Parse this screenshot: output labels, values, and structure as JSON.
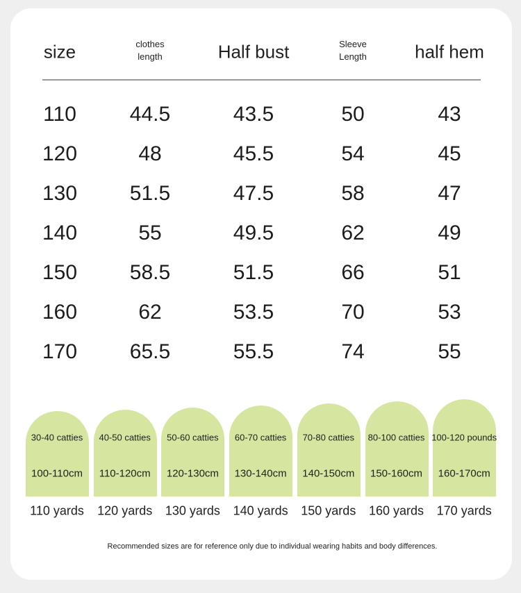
{
  "header": {
    "columns": [
      [
        "size"
      ],
      [
        "clothes",
        "length"
      ],
      [
        "Half bust"
      ],
      [
        "Sleeve",
        "Length"
      ],
      [
        "half hem"
      ]
    ]
  },
  "table": {
    "rows": [
      [
        "110",
        "44.5",
        "43.5",
        "50",
        "43"
      ],
      [
        "120",
        "48",
        "45.5",
        "54",
        "45"
      ],
      [
        "130",
        "51.5",
        "47.5",
        "58",
        "47"
      ],
      [
        "140",
        "55",
        "49.5",
        "62",
        "49"
      ],
      [
        "150",
        "58.5",
        "51.5",
        "66",
        "51"
      ],
      [
        "160",
        "62",
        "53.5",
        "70",
        "53"
      ],
      [
        "170",
        "65.5",
        "55.5",
        "74",
        "55"
      ]
    ]
  },
  "cards": [
    {
      "weight": "30-40 catties",
      "height": "100-110cm",
      "label": "110 yards"
    },
    {
      "weight": "40-50 catties",
      "height": "110-120cm",
      "label": "120 yards"
    },
    {
      "weight": "50-60 catties",
      "height": "120-130cm",
      "label": "130 yards"
    },
    {
      "weight": "60-70 catties",
      "height": "130-140cm",
      "label": "140 yards"
    },
    {
      "weight": "70-80 catties",
      "height": "140-150cm",
      "label": "150 yards"
    },
    {
      "weight": "80-100 catties",
      "height": "150-160cm",
      "label": "160 yards"
    },
    {
      "weight": "100-120 pounds",
      "height": "160-170cm",
      "label": "170 yards"
    }
  ],
  "footer": {
    "note": "Recommended sizes are for reference only due to individual wearing habits and body differences."
  }
}
